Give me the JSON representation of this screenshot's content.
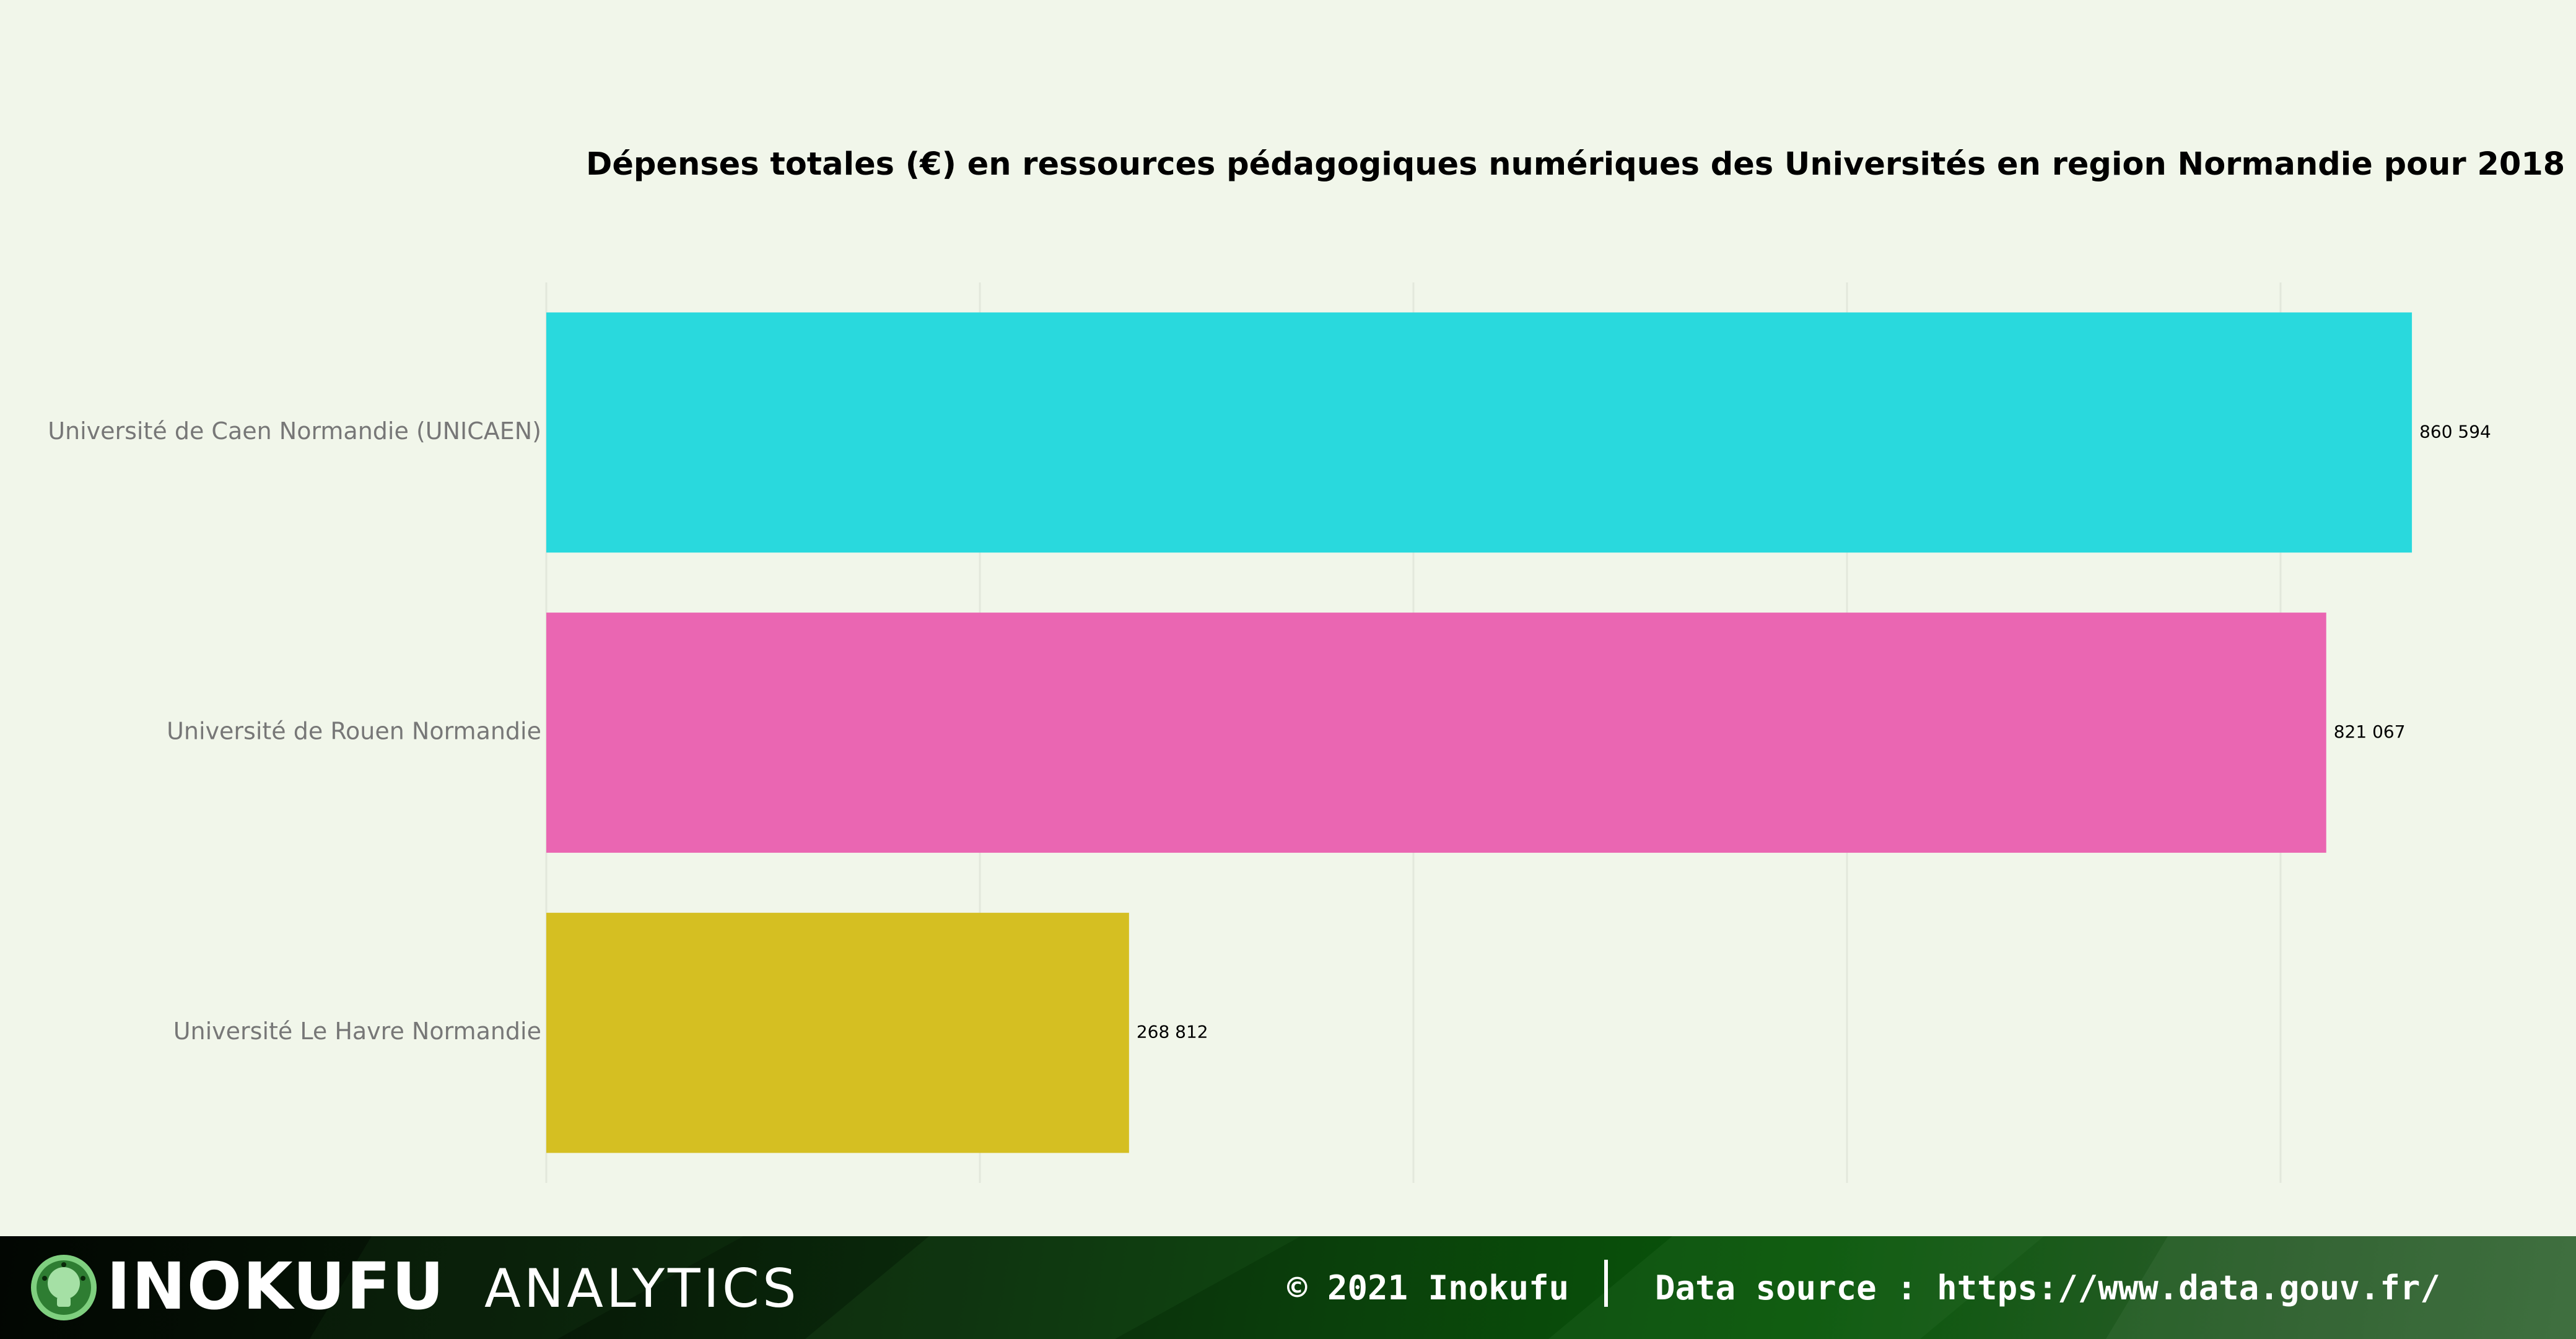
{
  "chart_data": {
    "type": "bar",
    "orientation": "horizontal",
    "title": "Dépenses totales (€) en ressources pédagogiques numériques des Universités en region Normandie pour 2018",
    "categories": [
      "Université de Caen Normandie (UNICAEN)",
      "Université de Rouen Normandie",
      "Université Le Havre Normandie"
    ],
    "values": [
      860594,
      821067,
      268812
    ],
    "value_labels": [
      "860 594",
      "821 067",
      "268 812"
    ],
    "colors": [
      "#29d9dd",
      "#ea66b2",
      "#d5bf22"
    ],
    "xlim": [
      0,
      900000
    ],
    "grid": true,
    "xlabel": "",
    "ylabel": ""
  },
  "footer": {
    "brand_name": "INOKUFU",
    "brand_sub": "ANALYTICS",
    "logo_icon": "lightbulb-icon",
    "copyright": "© 2021 Inokufu",
    "data_source": "Data source : https://www.data.gouv.fr/"
  }
}
